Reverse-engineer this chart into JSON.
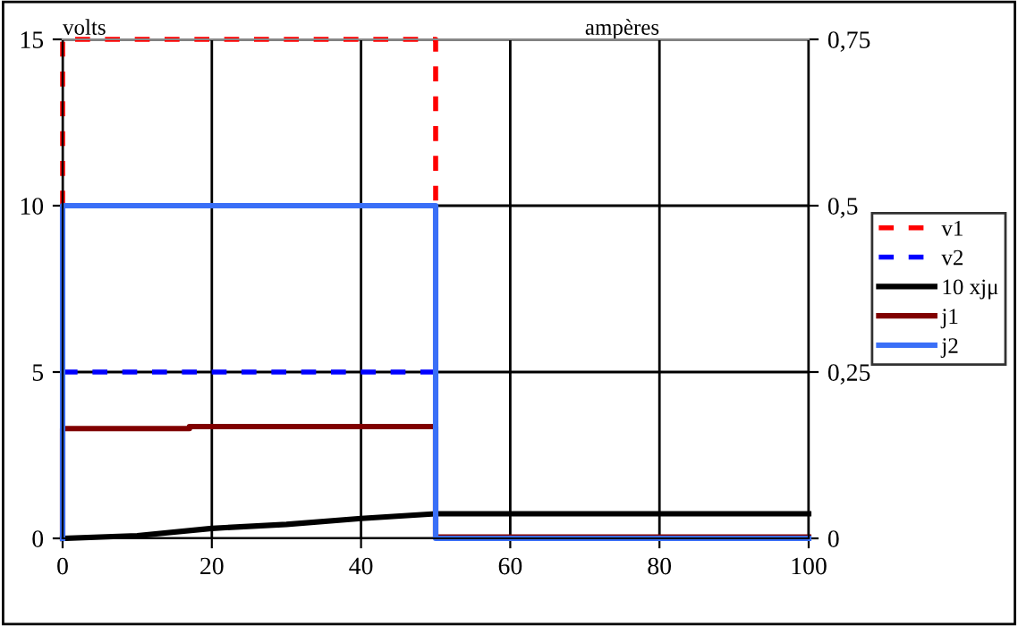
{
  "chart_data": {
    "type": "line",
    "ylabel": "volts",
    "y2label": "ampères",
    "xlim": [
      0,
      100
    ],
    "xticks": [
      0,
      20,
      40,
      60,
      80,
      100
    ],
    "ylim": [
      0,
      15
    ],
    "yticks": [
      0,
      5,
      10,
      15
    ],
    "y2lim": [
      0,
      0.75
    ],
    "y2ticks": [
      {
        "value": 0,
        "label": "0"
      },
      {
        "value": 0.25,
        "label": "0,25"
      },
      {
        "value": 0.5,
        "label": "0,5"
      },
      {
        "value": 0.75,
        "label": "0,75"
      }
    ],
    "grid": true,
    "legend": "right",
    "marker": "none",
    "series": [
      {
        "name": "v1",
        "color": "#ff0000",
        "line_style": "dashed",
        "x": [
          0,
          0,
          50,
          50
        ],
        "values": [
          10,
          15,
          15,
          10
        ]
      },
      {
        "name": "v2",
        "color": "#0000ff",
        "line_style": "dashed",
        "x": [
          0,
          50
        ],
        "values": [
          5,
          5
        ]
      },
      {
        "name": "10 xjμ",
        "color": "#000000",
        "line_style": "solid",
        "axis": "y2",
        "x": [
          0,
          10,
          20,
          30,
          40,
          50,
          100
        ],
        "values": [
          0,
          0.004,
          0.015,
          0.021,
          0.03,
          0.037,
          0.037
        ]
      },
      {
        "name": "j1",
        "color": "#800000",
        "line_style": "solid",
        "axis": "y2",
        "x": [
          0,
          0,
          17,
          17,
          50,
          50,
          100
        ],
        "values": [
          0,
          0.165,
          0.165,
          0.168,
          0.168,
          0.002,
          0.002
        ]
      },
      {
        "name": "j2",
        "color": "#3a6ff7",
        "line_style": "solid",
        "axis": "y2",
        "x": [
          0,
          0,
          50,
          50,
          100
        ],
        "values": [
          0,
          0.5,
          0.5,
          0,
          0
        ]
      }
    ]
  }
}
